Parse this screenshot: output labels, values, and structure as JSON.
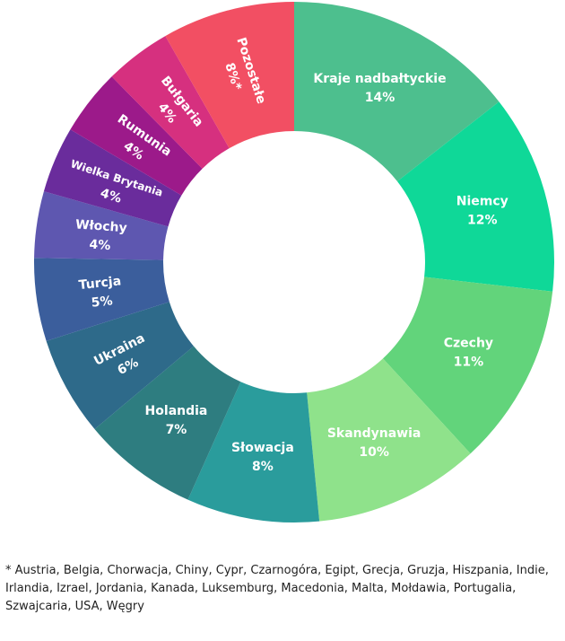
{
  "chart_data": {
    "type": "donut",
    "title": "",
    "segments": [
      {
        "label": "Kraje nadbałtyckie",
        "percent_label": "14%",
        "value": 14,
        "color": "#4dbf8e"
      },
      {
        "label": "Niemcy",
        "percent_label": "12%",
        "value": 12,
        "color": "#0fd898"
      },
      {
        "label": "Czechy",
        "percent_label": "11%",
        "value": 11,
        "color": "#62d47b"
      },
      {
        "label": "Skandynawia",
        "percent_label": "10%",
        "value": 10,
        "color": "#8fe28b"
      },
      {
        "label": "Słowacja",
        "percent_label": "8%",
        "value": 8,
        "color": "#2a9c9c"
      },
      {
        "label": "Holandia",
        "percent_label": "7%",
        "value": 7,
        "color": "#2e7d80"
      },
      {
        "label": "Ukraina",
        "percent_label": "6%",
        "value": 6,
        "color": "#2e6a8a"
      },
      {
        "label": "Turcja",
        "percent_label": "5%",
        "value": 5,
        "color": "#3b5e9c"
      },
      {
        "label": "Włochy",
        "percent_label": "4%",
        "value": 4,
        "color": "#5e57b0"
      },
      {
        "label": "Wielka Brytania",
        "percent_label": "4%",
        "value": 4,
        "color": "#6a2c9c"
      },
      {
        "label": "Rumunia",
        "percent_label": "4%",
        "value": 4,
        "color": "#9c1a8a"
      },
      {
        "label": "Bułgaria",
        "percent_label": "4%",
        "value": 4,
        "color": "#d6307f"
      },
      {
        "label": "Pozostałe",
        "percent_label": "8%*",
        "value": 8,
        "color": "#f24f63"
      }
    ]
  },
  "footnote": "* Austria, Belgia, Chorwacja, Chiny, Cypr, Czarnogóra, Egipt, Grecja, Gruzja, Hiszpania, Indie, Irlandia, Izrael, Jordania, Kanada, Luksemburg, Macedonia, Malta, Mołdawia, Portugalia, Szwajcaria, USA, Węgry"
}
